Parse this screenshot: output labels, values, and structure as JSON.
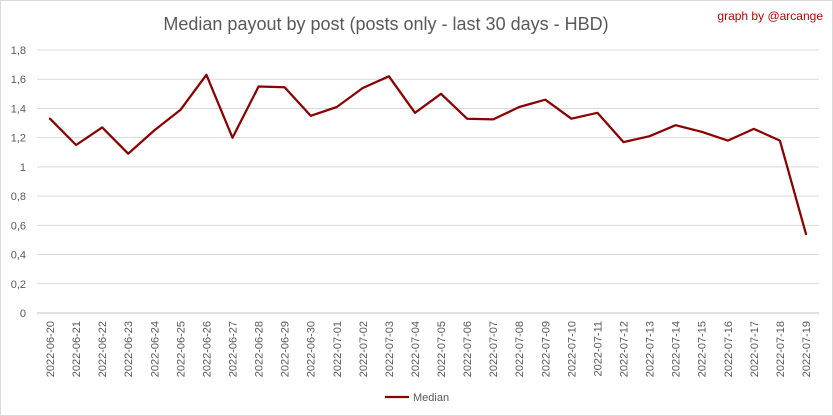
{
  "chart_data": {
    "type": "line",
    "title": "Median payout by post (posts only - last 30 days - HBD)",
    "credit": "graph by @arcange",
    "xlabel": "",
    "ylabel": "",
    "ylim": [
      0,
      1.8
    ],
    "yticks": [
      "0",
      "0,2",
      "0,4",
      "0,6",
      "0,8",
      "1",
      "1,2",
      "1,4",
      "1,6",
      "1,8"
    ],
    "grid": true,
    "legend_position": "bottom",
    "categories": [
      "2022-06-20",
      "2022-06-21",
      "2022-06-22",
      "2022-06-23",
      "2022-06-24",
      "2022-06-25",
      "2022-06-26",
      "2022-06-27",
      "2022-06-28",
      "2022-06-29",
      "2022-06-30",
      "2022-07-01",
      "2022-07-02",
      "2022-07-03",
      "2022-07-04",
      "2022-07-05",
      "2022-07-06",
      "2022-07-07",
      "2022-07-08",
      "2022-07-09",
      "2022-07-10",
      "2022-07-11",
      "2022-07-12",
      "2022-07-13",
      "2022-07-14",
      "2022-07-15",
      "2022-07-16",
      "2022-07-17",
      "2022-07-18",
      "2022-07-19"
    ],
    "series": [
      {
        "name": "Median",
        "color": "#8b0000",
        "values": [
          1.33,
          1.15,
          1.27,
          1.09,
          1.25,
          1.39,
          1.63,
          1.2,
          1.55,
          1.545,
          1.35,
          1.41,
          1.54,
          1.62,
          1.37,
          1.5,
          1.33,
          1.325,
          1.41,
          1.46,
          1.33,
          1.37,
          1.17,
          1.21,
          1.285,
          1.24,
          1.18,
          1.26,
          1.18,
          0.54
        ]
      }
    ]
  }
}
